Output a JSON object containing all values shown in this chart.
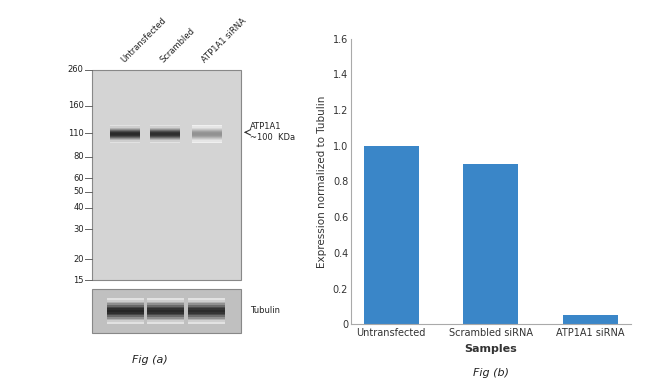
{
  "bar_categories": [
    "Untransfected",
    "Scrambled siRNA",
    "ATP1A1 siRNA"
  ],
  "bar_values": [
    1.0,
    0.9,
    0.05
  ],
  "bar_color": "#3a86c8",
  "bar_ylabel": "Expression normalized to Tubulin",
  "bar_xlabel": "Samples",
  "bar_ylim": [
    0,
    1.6
  ],
  "bar_yticks": [
    0,
    0.2,
    0.4,
    0.6,
    0.8,
    1.0,
    1.2,
    1.4,
    1.6
  ],
  "fig_a_label": "Fig (a)",
  "fig_b_label": "Fig (b)",
  "wb_mw_markers": [
    260,
    160,
    110,
    80,
    60,
    50,
    40,
    30,
    20,
    15
  ],
  "wb_band_label": "ATP1A1\n~100  KDa",
  "wb_tubulin_label": "Tubulin",
  "wb_sample_labels": [
    "Untransfected",
    "Scrambled",
    "ATP1A1 siRNA"
  ],
  "wb_background": "#d4d4d4",
  "wb_band_color": "#111111",
  "wb_tubulin_background": "#c0c0c0",
  "background_color": "#ffffff"
}
